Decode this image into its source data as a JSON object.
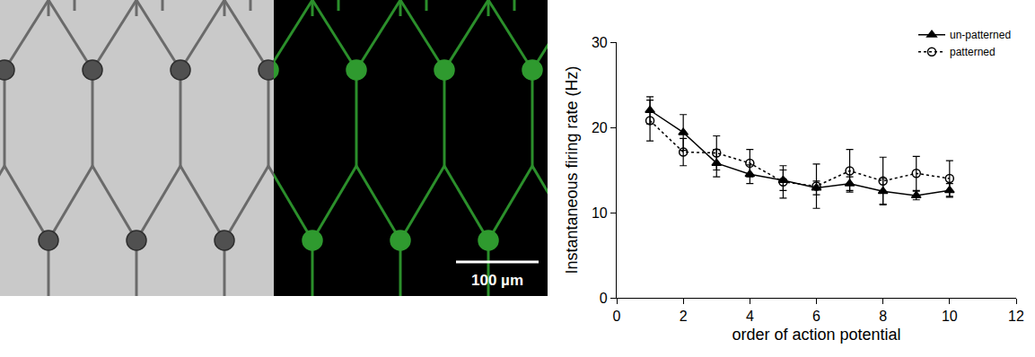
{
  "image": {
    "scale_bar_label": "100 µm"
  },
  "chart_data": {
    "type": "line",
    "x_label": "order of action potential",
    "y_label": "Instantaneous firing rate (Hz)",
    "xlim": [
      0,
      12
    ],
    "xticks": [
      0,
      2,
      4,
      6,
      8,
      10,
      12
    ],
    "ylim": [
      0,
      30
    ],
    "yticks": [
      0,
      10,
      20,
      30
    ],
    "grid": false,
    "legend": "top right",
    "x": [
      1,
      2,
      3,
      4,
      5,
      6,
      7,
      8,
      9,
      10
    ],
    "series": [
      {
        "name": "un-patterned",
        "color": "#000000",
        "marker": "filled-triangle",
        "line_style": "solid",
        "values": [
          22.0,
          19.4,
          15.8,
          14.5,
          13.8,
          12.9,
          13.4,
          12.5,
          12.0,
          12.6
        ],
        "errors": [
          1.6,
          2.1,
          1.6,
          1.1,
          1.2,
          0.8,
          0.8,
          1.5,
          0.5,
          0.8
        ]
      },
      {
        "name": "patterned",
        "color": "#000000",
        "marker": "open-circle",
        "line_style": "dotted",
        "values": [
          20.8,
          17.1,
          17.0,
          15.8,
          13.6,
          13.1,
          14.9,
          13.7,
          14.6,
          14.0
        ],
        "errors": [
          2.4,
          1.6,
          2.0,
          1.6,
          1.9,
          2.6,
          2.5,
          2.8,
          2.0,
          2.1
        ]
      }
    ]
  }
}
